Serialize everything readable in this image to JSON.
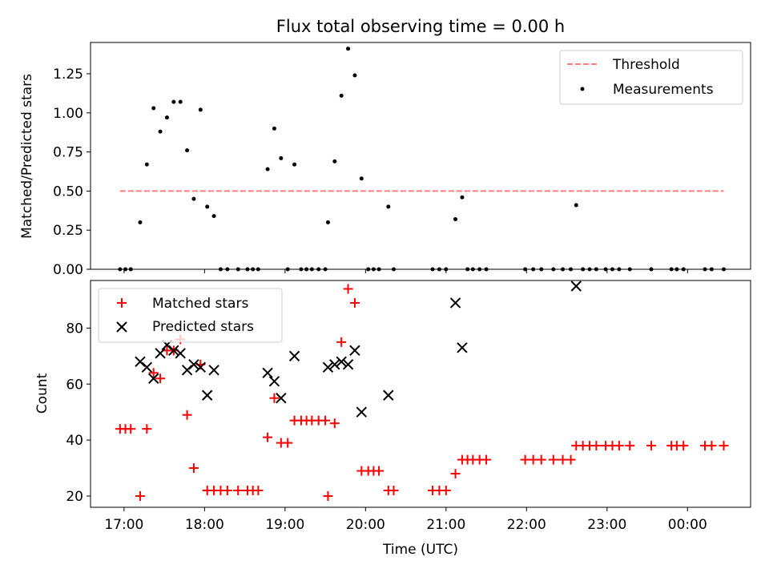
{
  "chart_data": [
    {
      "panel": "top",
      "type": "scatter",
      "title": "Flux total observing time = 0.00 h",
      "xlabel": "",
      "ylabel": "Matched/Predicted stars",
      "ylim": [
        0,
        1.45
      ],
      "yticks": [
        0.0,
        0.25,
        0.5,
        0.75,
        1.0,
        1.25
      ],
      "ytick_labels": [
        "0.00",
        "0.25",
        "0.50",
        "0.75",
        "1.00",
        "1.25"
      ],
      "xlim": [
        "16:35",
        "00:47"
      ],
      "xticks": [
        "17:00",
        "18:00",
        "19:00",
        "20:00",
        "21:00",
        "22:00",
        "23:00",
        "00:00"
      ],
      "grid": false,
      "legend_position": "upper right",
      "threshold": {
        "name": "Threshold",
        "value": 0.5,
        "x_start": "16:57",
        "x_end": "00:27",
        "color": "#ff7f7f",
        "style": "dashed"
      },
      "series": [
        {
          "name": "Measurements",
          "color": "#000000",
          "marker": "dot",
          "points": [
            [
              "16:57",
              0.0
            ],
            [
              "17:01",
              0.0
            ],
            [
              "17:05",
              0.0
            ],
            [
              "17:12",
              0.3
            ],
            [
              "17:17",
              0.67
            ],
            [
              "17:22",
              1.03
            ],
            [
              "17:27",
              0.88
            ],
            [
              "17:32",
              0.97
            ],
            [
              "17:37",
              1.07
            ],
            [
              "17:42",
              1.07
            ],
            [
              "17:47",
              0.76
            ],
            [
              "17:52",
              0.45
            ],
            [
              "17:57",
              1.02
            ],
            [
              "18:02",
              0.4
            ],
            [
              "18:07",
              0.34
            ],
            [
              "18:12",
              0.0
            ],
            [
              "18:17",
              0.0
            ],
            [
              "18:25",
              0.0
            ],
            [
              "18:32",
              0.0
            ],
            [
              "18:36",
              0.0
            ],
            [
              "18:40",
              0.0
            ],
            [
              "18:47",
              0.64
            ],
            [
              "18:52",
              0.9
            ],
            [
              "18:57",
              0.71
            ],
            [
              "19:02",
              0.0
            ],
            [
              "19:07",
              0.67
            ],
            [
              "19:12",
              0.0
            ],
            [
              "19:16",
              0.0
            ],
            [
              "19:20",
              0.0
            ],
            [
              "19:25",
              0.0
            ],
            [
              "19:30",
              0.0
            ],
            [
              "19:32",
              0.3
            ],
            [
              "19:37",
              0.69
            ],
            [
              "19:42",
              1.11
            ],
            [
              "19:47",
              1.41
            ],
            [
              "19:52",
              1.24
            ],
            [
              "19:57",
              0.58
            ],
            [
              "20:02",
              0.0
            ],
            [
              "20:06",
              0.0
            ],
            [
              "20:10",
              0.0
            ],
            [
              "20:17",
              0.4
            ],
            [
              "20:21",
              0.0
            ],
            [
              "20:50",
              0.0
            ],
            [
              "20:55",
              0.0
            ],
            [
              "21:00",
              0.0
            ],
            [
              "21:07",
              0.32
            ],
            [
              "21:12",
              0.46
            ],
            [
              "21:16",
              0.0
            ],
            [
              "21:20",
              0.0
            ],
            [
              "21:25",
              0.0
            ],
            [
              "21:30",
              0.0
            ],
            [
              "21:59",
              0.0
            ],
            [
              "22:05",
              0.0
            ],
            [
              "22:11",
              0.0
            ],
            [
              "22:20",
              0.0
            ],
            [
              "22:27",
              0.0
            ],
            [
              "22:33",
              0.0
            ],
            [
              "22:37",
              0.41
            ],
            [
              "22:42",
              0.0
            ],
            [
              "22:47",
              0.0
            ],
            [
              "22:52",
              0.0
            ],
            [
              "22:59",
              0.0
            ],
            [
              "23:04",
              0.0
            ],
            [
              "23:09",
              0.0
            ],
            [
              "23:17",
              0.0
            ],
            [
              "23:33",
              0.0
            ],
            [
              "23:48",
              0.0
            ],
            [
              "23:52",
              0.0
            ],
            [
              "23:57",
              0.0
            ],
            [
              "00:13",
              0.0
            ],
            [
              "00:18",
              0.0
            ],
            [
              "00:27",
              0.0
            ]
          ]
        }
      ]
    },
    {
      "panel": "bottom",
      "type": "scatter",
      "title": "",
      "xlabel": "Time (UTC)",
      "ylabel": "Count",
      "ylim": [
        16,
        97
      ],
      "yticks": [
        20,
        40,
        60,
        80
      ],
      "ytick_labels": [
        "20",
        "40",
        "60",
        "80"
      ],
      "xlim": [
        "16:35",
        "00:47"
      ],
      "xticks": [
        "17:00",
        "18:00",
        "19:00",
        "20:00",
        "21:00",
        "22:00",
        "23:00",
        "00:00"
      ],
      "xtick_labels": [
        "17:00",
        "18:00",
        "19:00",
        "20:00",
        "21:00",
        "22:00",
        "23:00",
        "00:00"
      ],
      "grid": false,
      "legend_position": "upper left",
      "series": [
        {
          "name": "Matched stars",
          "color": "#ff0000",
          "marker": "plus",
          "points": [
            [
              "16:57",
              44
            ],
            [
              "17:01",
              44
            ],
            [
              "17:05",
              44
            ],
            [
              "17:12",
              20
            ],
            [
              "17:17",
              44
            ],
            [
              "17:22",
              64
            ],
            [
              "17:27",
              62
            ],
            [
              "17:32",
              72
            ],
            [
              "17:37",
              72
            ],
            [
              "17:42",
              76
            ],
            [
              "17:47",
              49
            ],
            [
              "17:52",
              30
            ],
            [
              "17:57",
              67
            ],
            [
              "18:02",
              22
            ],
            [
              "18:07",
              22
            ],
            [
              "18:12",
              22
            ],
            [
              "18:17",
              22
            ],
            [
              "18:25",
              22
            ],
            [
              "18:32",
              22
            ],
            [
              "18:36",
              22
            ],
            [
              "18:40",
              22
            ],
            [
              "18:47",
              41
            ],
            [
              "18:52",
              55
            ],
            [
              "18:57",
              39
            ],
            [
              "19:02",
              39
            ],
            [
              "19:07",
              47
            ],
            [
              "19:12",
              47
            ],
            [
              "19:16",
              47
            ],
            [
              "19:20",
              47
            ],
            [
              "19:25",
              47
            ],
            [
              "19:30",
              47
            ],
            [
              "19:32",
              20
            ],
            [
              "19:37",
              46
            ],
            [
              "19:42",
              75
            ],
            [
              "19:47",
              94
            ],
            [
              "19:52",
              89
            ],
            [
              "19:57",
              29
            ],
            [
              "20:02",
              29
            ],
            [
              "20:06",
              29
            ],
            [
              "20:10",
              29
            ],
            [
              "20:17",
              22
            ],
            [
              "20:21",
              22
            ],
            [
              "20:50",
              22
            ],
            [
              "20:55",
              22
            ],
            [
              "21:00",
              22
            ],
            [
              "21:07",
              28
            ],
            [
              "21:12",
              33
            ],
            [
              "21:16",
              33
            ],
            [
              "21:20",
              33
            ],
            [
              "21:25",
              33
            ],
            [
              "21:30",
              33
            ],
            [
              "21:59",
              33
            ],
            [
              "22:05",
              33
            ],
            [
              "22:11",
              33
            ],
            [
              "22:20",
              33
            ],
            [
              "22:27",
              33
            ],
            [
              "22:33",
              33
            ],
            [
              "22:37",
              38
            ],
            [
              "22:42",
              38
            ],
            [
              "22:47",
              38
            ],
            [
              "22:52",
              38
            ],
            [
              "22:59",
              38
            ],
            [
              "23:04",
              38
            ],
            [
              "23:09",
              38
            ],
            [
              "23:17",
              38
            ],
            [
              "23:33",
              38
            ],
            [
              "23:48",
              38
            ],
            [
              "23:52",
              38
            ],
            [
              "23:57",
              38
            ],
            [
              "00:13",
              38
            ],
            [
              "00:18",
              38
            ],
            [
              "00:27",
              38
            ]
          ]
        },
        {
          "name": "Predicted stars",
          "color": "#000000",
          "marker": "x",
          "points": [
            [
              "17:12",
              68
            ],
            [
              "17:17",
              66
            ],
            [
              "17:22",
              62
            ],
            [
              "17:27",
              71
            ],
            [
              "17:32",
              74
            ],
            [
              "17:37",
              72
            ],
            [
              "17:42",
              71
            ],
            [
              "17:47",
              65
            ],
            [
              "17:52",
              67
            ],
            [
              "17:57",
              66
            ],
            [
              "18:02",
              56
            ],
            [
              "18:07",
              65
            ],
            [
              "18:47",
              64
            ],
            [
              "18:52",
              61
            ],
            [
              "18:57",
              55
            ],
            [
              "19:07",
              70
            ],
            [
              "19:32",
              66
            ],
            [
              "19:37",
              67
            ],
            [
              "19:42",
              68
            ],
            [
              "19:47",
              67
            ],
            [
              "19:52",
              72
            ],
            [
              "19:57",
              50
            ],
            [
              "20:17",
              56
            ],
            [
              "21:07",
              89
            ],
            [
              "21:12",
              73
            ],
            [
              "22:37",
              95
            ]
          ]
        }
      ]
    }
  ]
}
